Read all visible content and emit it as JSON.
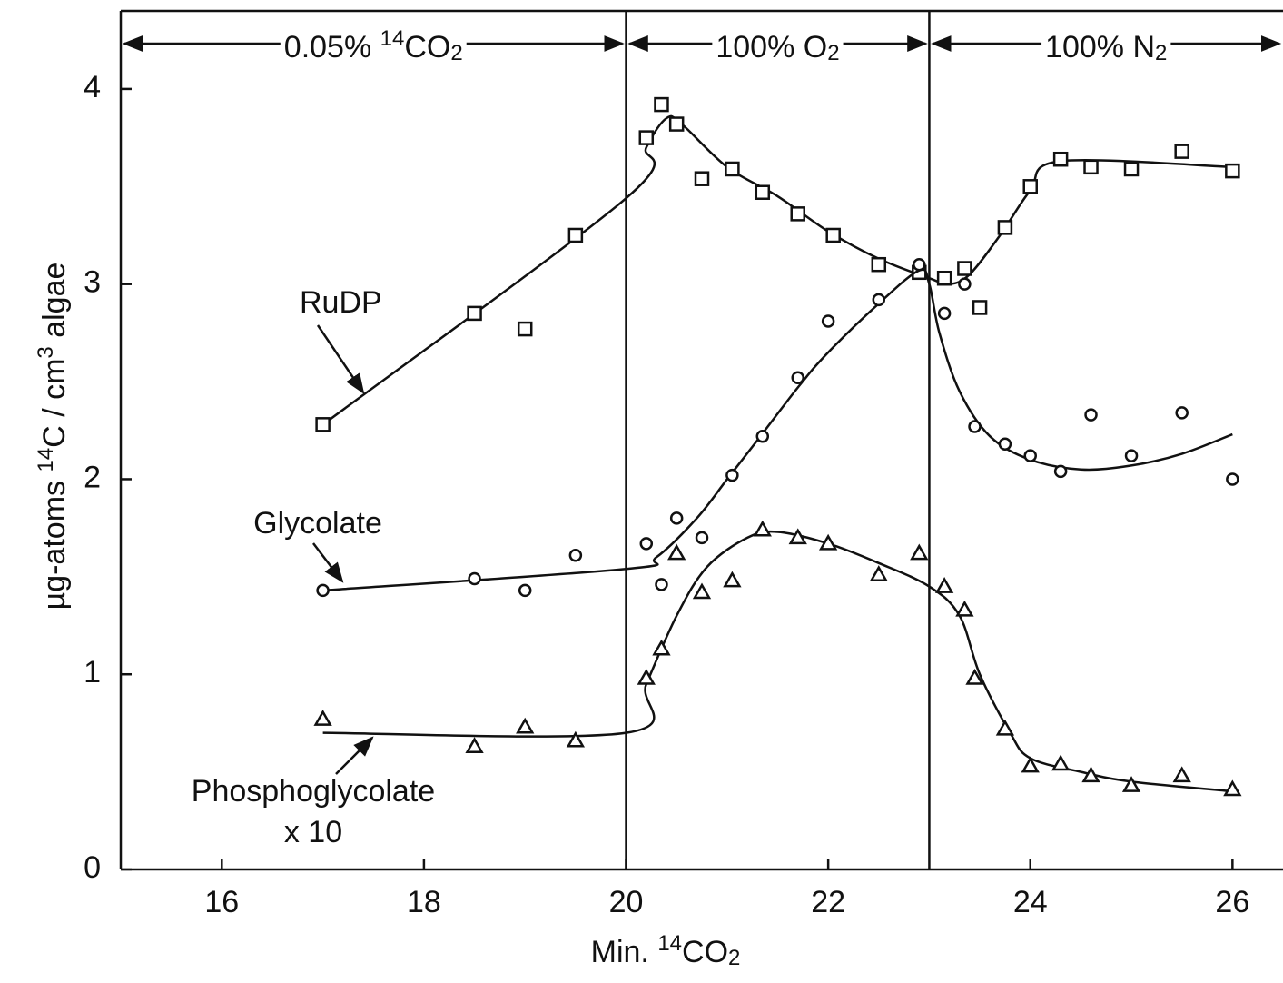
{
  "chart_data": {
    "type": "scatter",
    "xlabel": [
      {
        "t": "Min. "
      },
      {
        "sup": "14"
      },
      {
        "t": "CO"
      },
      {
        "sub": "2"
      }
    ],
    "ylabel": [
      {
        "t": "µg-atoms "
      },
      {
        "sup": "14"
      },
      {
        "t": "C / cm"
      },
      {
        "sup": "3"
      },
      {
        "t": " algae"
      }
    ],
    "xlim": [
      15,
      26.5
    ],
    "ylim": [
      0,
      4.4
    ],
    "xticks": [
      16,
      18,
      20,
      22,
      24,
      26
    ],
    "yticks": [
      0,
      1,
      2,
      3,
      4
    ],
    "dividers": [
      20,
      23
    ],
    "regions": [
      [
        {
          "t": "0.05% "
        },
        {
          "sup": "14"
        },
        {
          "t": "CO"
        },
        {
          "sub": "2"
        }
      ],
      [
        {
          "t": "100% O"
        },
        {
          "sub": "2"
        }
      ],
      [
        {
          "t": "100% N"
        },
        {
          "sub": "2"
        }
      ]
    ],
    "annotations": [
      "RuDP",
      "Glycolate",
      "Phosphoglycolate",
      "x 10"
    ],
    "color": "#111111",
    "series": [
      {
        "name": "RuDP",
        "marker": "square",
        "x": [
          17,
          18.5,
          19,
          19.5,
          20.2,
          20.35,
          20.5,
          20.75,
          21.05,
          21.35,
          21.7,
          22.05,
          22.5,
          22.9,
          23.15,
          23.35,
          23.5,
          23.75,
          24,
          24.3,
          24.6,
          25,
          25.5,
          26
        ],
        "values": [
          2.28,
          2.85,
          2.77,
          3.25,
          3.75,
          3.92,
          3.82,
          3.54,
          3.59,
          3.47,
          3.36,
          3.25,
          3.1,
          3.06,
          3.03,
          3.08,
          2.88,
          3.29,
          3.5,
          3.64,
          3.6,
          3.59,
          3.68,
          3.58
        ],
        "fit_x": [
          17,
          20,
          20.2,
          20.4,
          20.55,
          21,
          21.5,
          22,
          22.5,
          23,
          23.2,
          23.4,
          23.7,
          24,
          24.3,
          26
        ],
        "fit_y": [
          2.28,
          3.44,
          3.7,
          3.85,
          3.82,
          3.6,
          3.45,
          3.27,
          3.13,
          3.03,
          3.0,
          3.05,
          3.25,
          3.48,
          3.63,
          3.6
        ]
      },
      {
        "name": "Glycolate",
        "marker": "circle",
        "x": [
          17,
          18.5,
          19,
          19.5,
          20.2,
          20.35,
          20.5,
          20.75,
          21.05,
          21.35,
          21.7,
          22,
          22.5,
          22.9,
          23.15,
          23.35,
          23.45,
          23.75,
          24,
          24.3,
          24.6,
          25,
          25.5,
          26
        ],
        "values": [
          1.43,
          1.49,
          1.43,
          1.61,
          1.67,
          1.46,
          1.8,
          1.7,
          2.02,
          2.22,
          2.52,
          2.81,
          2.92,
          3.1,
          2.85,
          3.0,
          2.27,
          2.18,
          2.12,
          2.04,
          2.33,
          2.12,
          2.34,
          2.0
        ],
        "fit_x": [
          17,
          20,
          20.3,
          20.7,
          21,
          21.3,
          21.7,
          22,
          22.5,
          22.9,
          23,
          23.1,
          23.3,
          23.6,
          24,
          24.5,
          25,
          25.5,
          26
        ],
        "fit_y": [
          1.43,
          1.54,
          1.6,
          1.8,
          2.0,
          2.2,
          2.47,
          2.65,
          2.9,
          3.07,
          3.0,
          2.75,
          2.45,
          2.22,
          2.1,
          2.05,
          2.07,
          2.13,
          2.23
        ]
      },
      {
        "name": "Phosphoglycolate",
        "marker": "triangle",
        "x": [
          17,
          18.5,
          19,
          19.5,
          20.2,
          20.35,
          20.5,
          20.75,
          21.05,
          21.35,
          21.7,
          22,
          22.5,
          22.9,
          23.15,
          23.35,
          23.45,
          23.75,
          24,
          24.3,
          24.6,
          25,
          25.5,
          26
        ],
        "values": [
          0.77,
          0.63,
          0.73,
          0.66,
          0.98,
          1.13,
          1.62,
          1.42,
          1.48,
          1.74,
          1.7,
          1.67,
          1.51,
          1.62,
          1.45,
          1.33,
          0.98,
          0.72,
          0.53,
          0.54,
          0.48,
          0.43,
          0.48,
          0.41
        ],
        "fit_x": [
          17,
          20,
          20.2,
          20.5,
          20.8,
          21.2,
          21.5,
          22,
          22.5,
          23,
          23.3,
          23.5,
          23.8,
          24,
          24.5,
          25,
          26
        ],
        "fit_y": [
          0.7,
          0.7,
          0.95,
          1.3,
          1.55,
          1.7,
          1.73,
          1.67,
          1.57,
          1.45,
          1.3,
          1.0,
          0.7,
          0.57,
          0.5,
          0.45,
          0.4
        ]
      }
    ]
  }
}
